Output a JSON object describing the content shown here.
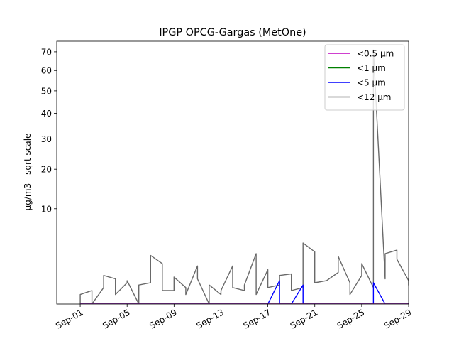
{
  "chart_data": {
    "type": "line",
    "title": "IPGP OPCG-Gargas (MetOne)",
    "xlabel": "",
    "ylabel": "µg/m3 - sqrt scale",
    "y_scale": "sqrt",
    "ylim": [
      0,
      76
    ],
    "xlim": [
      "2021-08-30",
      "2021-09-29"
    ],
    "x_ticks": [
      {
        "date": "2021-09-01",
        "label": "Sep-01"
      },
      {
        "date": "2021-09-05",
        "label": "Sep-05"
      },
      {
        "date": "2021-09-09",
        "label": "Sep-09"
      },
      {
        "date": "2021-09-13",
        "label": "Sep-13"
      },
      {
        "date": "2021-09-17",
        "label": "Sep-17"
      },
      {
        "date": "2021-09-21",
        "label": "Sep-21"
      },
      {
        "date": "2021-09-25",
        "label": "Sep-25"
      },
      {
        "date": "2021-09-29",
        "label": "Sep-29"
      }
    ],
    "y_ticks": [
      10,
      20,
      30,
      40,
      50,
      60,
      70
    ],
    "legend": "top-right",
    "grid": false,
    "series": [
      {
        "name": "<0.5 µm",
        "color": "#bf00bf",
        "values": [
          0,
          0,
          0,
          0,
          0,
          0,
          0,
          0,
          0,
          0,
          0,
          0,
          0,
          0,
          0,
          0,
          0,
          0,
          0,
          0,
          0,
          0,
          0,
          0,
          0,
          0,
          0,
          0,
          0,
          0,
          0,
          0,
          0,
          0,
          0,
          0,
          0,
          0,
          0,
          0,
          0,
          0,
          0,
          0,
          0,
          0,
          0,
          0,
          0,
          0,
          0,
          0,
          0,
          0,
          0,
          0,
          0,
          0,
          0,
          0,
          0,
          0,
          0,
          0
        ]
      },
      {
        "name": "<1 µm",
        "color": "#008000",
        "values": [
          0,
          0,
          0,
          0,
          0,
          0,
          0,
          0,
          0,
          0,
          0,
          0,
          0,
          0,
          0,
          0,
          0,
          0,
          0,
          0,
          0,
          0,
          0,
          0,
          0,
          0,
          0,
          0,
          0,
          0,
          0,
          0,
          0,
          0,
          0,
          0,
          0,
          0,
          0,
          0,
          0,
          0,
          0,
          0,
          0,
          0,
          0,
          0,
          0,
          0,
          0,
          0,
          0,
          0,
          0,
          0,
          0,
          0,
          0,
          0,
          0,
          0,
          0,
          0
        ]
      },
      {
        "name": "<5 µm",
        "color": "#0000ff",
        "values": [
          0,
          0,
          0,
          0,
          0,
          0,
          0,
          0,
          0,
          0,
          0,
          0,
          0,
          0,
          0,
          0,
          0,
          0,
          0,
          0,
          0,
          0,
          0,
          0,
          0,
          0,
          0,
          0,
          0,
          0,
          0,
          0,
          0,
          0,
          0.6,
          0,
          0,
          0,
          0.4,
          0,
          0,
          0,
          0,
          0,
          0,
          0,
          0,
          0,
          0,
          0,
          0,
          0.5,
          0,
          0,
          0,
          0,
          0,
          0,
          0.9,
          0.3,
          0,
          1.1,
          0.4,
          0
        ]
      },
      {
        "name": "<12 µm",
        "color": "#696969",
        "values": [
          0,
          0.1,
          0.2,
          0,
          0.3,
          0.9,
          0.7,
          0.1,
          0.5,
          0.6,
          0,
          0.4,
          0.5,
          2.6,
          1.8,
          0.2,
          0.2,
          0.8,
          0.3,
          0.1,
          1.6,
          0.7,
          0,
          0.4,
          0.1,
          0.2,
          1.6,
          0.3,
          0.2,
          0.4,
          2.8,
          0.1,
          1.3,
          0.3,
          0.4,
          0.9,
          1.0,
          0.2,
          0.3,
          4.1,
          3.0,
          0.5,
          0.6,
          0.6,
          1.1,
          2.5,
          0.5,
          0.1,
          0.9,
          1.8,
          0.3,
          71.0,
          0.7,
          2.8,
          3.2,
          2.2,
          0.6,
          0.4,
          1.2,
          0.8,
          0.5,
          1.4,
          0.9,
          0.1
        ]
      }
    ],
    "x_dates": [
      "2021-09-01",
      "2021-09-01",
      "2021-09-02",
      "2021-09-02",
      "2021-09-03",
      "2021-09-03",
      "2021-09-04",
      "2021-09-04",
      "2021-09-05",
      "2021-09-05",
      "2021-09-06",
      "2021-09-06",
      "2021-09-07",
      "2021-09-07",
      "2021-09-08",
      "2021-09-08",
      "2021-09-09",
      "2021-09-09",
      "2021-09-10",
      "2021-09-10",
      "2021-09-11",
      "2021-09-11",
      "2021-09-12",
      "2021-09-12",
      "2021-09-13",
      "2021-09-13",
      "2021-09-14",
      "2021-09-14",
      "2021-09-15",
      "2021-09-15",
      "2021-09-16",
      "2021-09-16",
      "2021-09-17",
      "2021-09-17",
      "2021-09-18",
      "2021-09-18",
      "2021-09-19",
      "2021-09-19",
      "2021-09-20",
      "2021-09-20",
      "2021-09-21",
      "2021-09-21",
      "2021-09-22",
      "2021-09-22",
      "2021-09-23",
      "2021-09-23",
      "2021-09-24",
      "2021-09-24",
      "2021-09-25",
      "2021-09-25",
      "2021-09-26",
      "2021-09-26",
      "2021-09-27",
      "2021-09-27",
      "2021-09-28",
      "2021-09-28",
      "2021-09-29",
      "2021-09-29",
      "2021-09-30",
      "2021-09-30",
      "2021-10-01",
      "2021-10-01",
      "2021-10-02",
      "2021-10-02"
    ]
  }
}
